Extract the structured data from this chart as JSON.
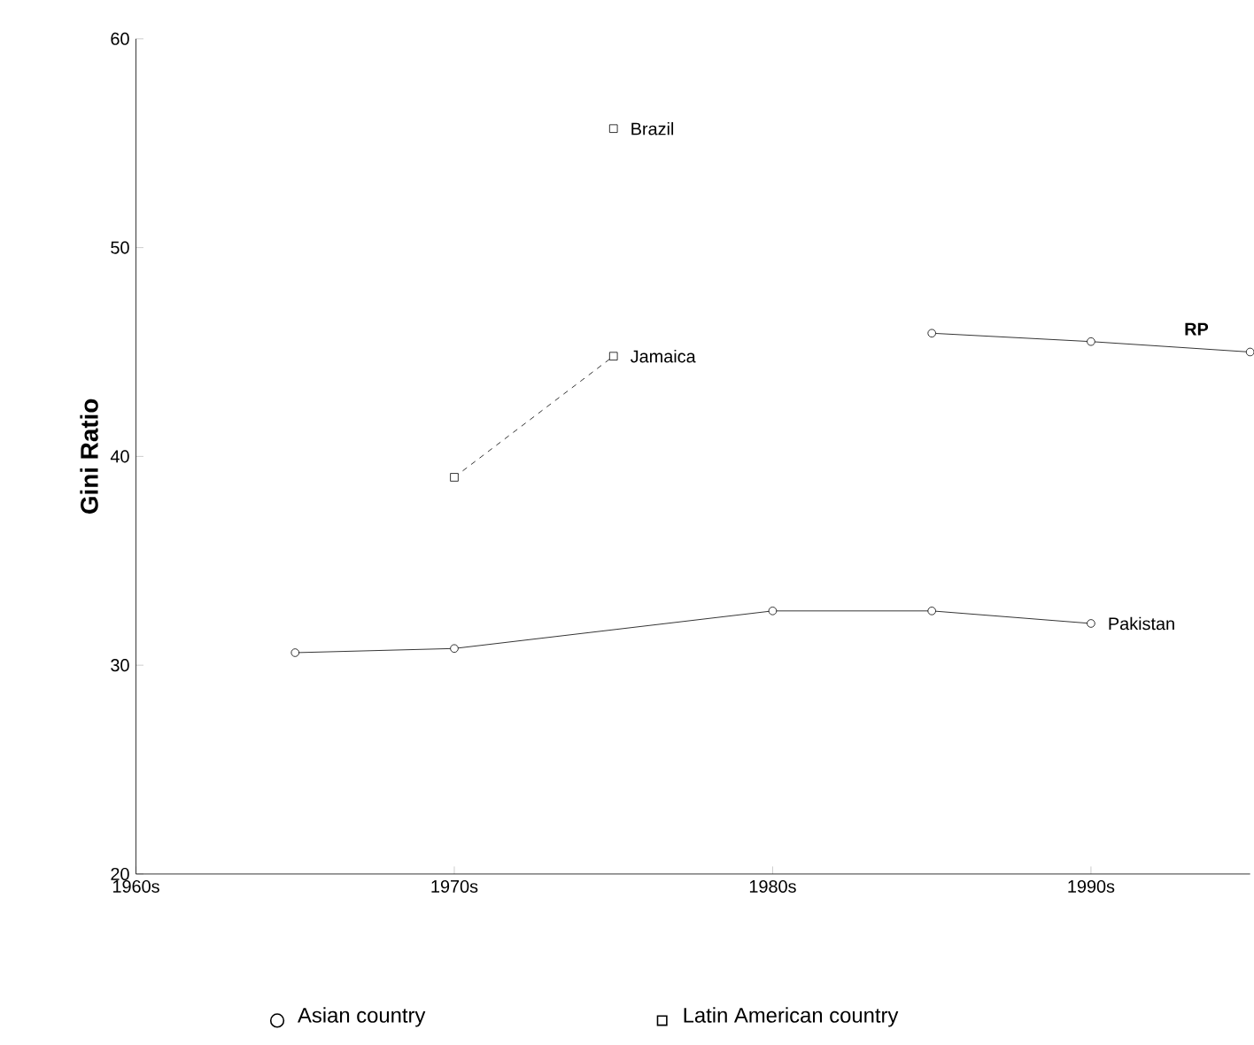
{
  "chart_data": {
    "type": "line",
    "ylabel": "Gini Ratio",
    "xlim": [
      1960,
      1995
    ],
    "ylim": [
      20,
      60
    ],
    "xticks": [
      {
        "value": 1960,
        "label": "1960s"
      },
      {
        "value": 1970,
        "label": "1970s"
      },
      {
        "value": 1980,
        "label": "1980s"
      },
      {
        "value": 1990,
        "label": "1990s"
      }
    ],
    "yticks": [
      20,
      30,
      40,
      50,
      60
    ],
    "series": [
      {
        "name": "Pakistan",
        "marker": "circle",
        "line_style": "solid",
        "color": "#000000",
        "x": [
          1965,
          1970,
          1980,
          1985,
          1990
        ],
        "values": [
          30.6,
          30.8,
          32.6,
          32.6,
          32.0
        ]
      },
      {
        "name": "RP",
        "marker": "circle",
        "line_style": "solid",
        "color": "#000000",
        "x": [
          1985,
          1990,
          1995
        ],
        "values": [
          45.9,
          45.5,
          45.0
        ]
      },
      {
        "name": "Jamaica",
        "marker": "square",
        "line_style": "dashed",
        "color": "#000000",
        "x": [
          1970,
          1975
        ],
        "values": [
          39.0,
          44.8
        ]
      },
      {
        "name": "Brazil",
        "type": "scatter",
        "marker": "square",
        "color": "#000000",
        "x": [
          1975
        ],
        "values": [
          55.7
        ]
      }
    ],
    "annotations": [
      "Asian country",
      "Latin American country"
    ]
  }
}
